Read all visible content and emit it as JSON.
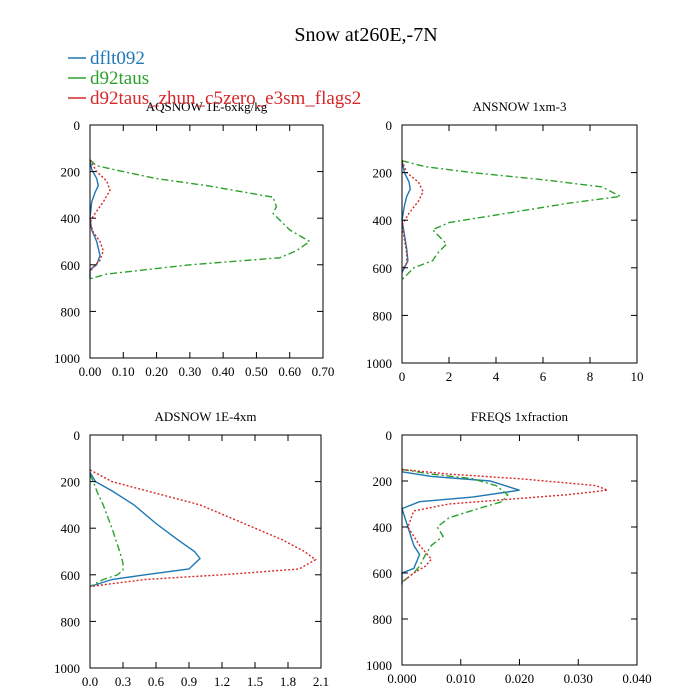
{
  "figure": {
    "title": "Snow at260E,-7N"
  },
  "legend": [
    {
      "name": "dflt092",
      "color": "#1f77b4",
      "dash": ""
    },
    {
      "name": "d92taus",
      "color": "#2ca02c",
      "dash": "7,3,2,3"
    },
    {
      "name": "d92taus_zhun_c5zero_e3sm_flags2",
      "color": "#d62728",
      "dash": "2,2"
    }
  ],
  "chart_data": [
    {
      "type": "line",
      "title": "AQSNOW  1E-6xkg/kg",
      "xlim": [
        0,
        0.7
      ],
      "ylim": [
        0,
        1000
      ],
      "xticks": [
        "0.00",
        "0.10",
        "0.20",
        "0.30",
        "0.40",
        "0.50",
        "0.60",
        "0.70"
      ],
      "xtick_values": [
        0,
        0.1,
        0.2,
        0.3,
        0.4,
        0.5,
        0.6,
        0.7
      ],
      "yticks": [
        "0",
        "200",
        "400",
        "600",
        "800",
        "1000"
      ],
      "ytick_values": [
        0,
        200,
        400,
        600,
        800,
        1000
      ],
      "series": [
        {
          "name": "dflt092",
          "points": [
            [
              0,
              150
            ],
            [
              0.005,
              190
            ],
            [
              0.02,
              230
            ],
            [
              0.025,
              260
            ],
            [
              0.015,
              290
            ],
            [
              0.005,
              330
            ],
            [
              0,
              400
            ],
            [
              0.005,
              450
            ],
            [
              0.02,
              500
            ],
            [
              0.03,
              560
            ],
            [
              0.02,
              600
            ],
            [
              0,
              620
            ],
            [
              0,
              660
            ]
          ]
        },
        {
          "name": "d92taus",
          "points": [
            [
              0,
              150
            ],
            [
              0.02,
              175
            ],
            [
              0.1,
              200
            ],
            [
              0.2,
              230
            ],
            [
              0.35,
              260
            ],
            [
              0.55,
              310
            ],
            [
              0.56,
              350
            ],
            [
              0.55,
              380
            ],
            [
              0.6,
              450
            ],
            [
              0.66,
              500
            ],
            [
              0.62,
              540
            ],
            [
              0.57,
              570
            ],
            [
              0.3,
              600
            ],
            [
              0.05,
              640
            ],
            [
              0,
              660
            ]
          ]
        },
        {
          "name": "d92taus_zhun_c5zero_e3sm_flags2",
          "points": [
            [
              0,
              150
            ],
            [
              0.02,
              200
            ],
            [
              0.05,
              240
            ],
            [
              0.06,
              280
            ],
            [
              0.04,
              330
            ],
            [
              0.01,
              390
            ],
            [
              0,
              420
            ],
            [
              0.01,
              460
            ],
            [
              0.03,
              500
            ],
            [
              0.04,
              540
            ],
            [
              0.03,
              580
            ],
            [
              0.01,
              610
            ],
            [
              0,
              630
            ]
          ]
        }
      ]
    },
    {
      "type": "line",
      "title": "ANSNOW  1xm-3",
      "xlim": [
        0,
        10
      ],
      "ylim": [
        0,
        1000
      ],
      "xticks": [
        "0",
        "2",
        "4",
        "6",
        "8",
        "10"
      ],
      "xtick_values": [
        0,
        2,
        4,
        6,
        8,
        10
      ],
      "yticks": [
        "0",
        "200",
        "400",
        "600",
        "800",
        "1000"
      ],
      "ytick_values": [
        0,
        200,
        400,
        600,
        800,
        1000
      ],
      "series": [
        {
          "name": "dflt092",
          "points": [
            [
              0,
              150
            ],
            [
              0.1,
              200
            ],
            [
              0.3,
              240
            ],
            [
              0.35,
              270
            ],
            [
              0.2,
              300
            ],
            [
              0.1,
              340
            ],
            [
              0,
              400
            ],
            [
              0.1,
              460
            ],
            [
              0.2,
              520
            ],
            [
              0.25,
              570
            ],
            [
              0.1,
              600
            ],
            [
              0,
              620
            ]
          ]
        },
        {
          "name": "d92taus",
          "points": [
            [
              0,
              150
            ],
            [
              1,
              175
            ],
            [
              3,
              200
            ],
            [
              6,
              230
            ],
            [
              8.5,
              260
            ],
            [
              9.3,
              300
            ],
            [
              7,
              330
            ],
            [
              4.5,
              370
            ],
            [
              2,
              410
            ],
            [
              1.3,
              440
            ],
            [
              1.6,
              470
            ],
            [
              1.9,
              500
            ],
            [
              1.5,
              540
            ],
            [
              1.3,
              570
            ],
            [
              0.5,
              600
            ],
            [
              0,
              650
            ]
          ]
        },
        {
          "name": "d92taus_zhun_c5zero_e3sm_flags2",
          "points": [
            [
              0,
              150
            ],
            [
              0.2,
              200
            ],
            [
              0.7,
              240
            ],
            [
              0.9,
              280
            ],
            [
              0.7,
              320
            ],
            [
              0.3,
              370
            ],
            [
              0,
              420
            ],
            [
              0.1,
              480
            ],
            [
              0.2,
              540
            ],
            [
              0.2,
              580
            ],
            [
              0,
              610
            ]
          ]
        }
      ]
    },
    {
      "type": "line",
      "title": "ADSNOW  1E-4xm",
      "xlim": [
        0,
        2.1
      ],
      "ylim": [
        0,
        1000
      ],
      "xticks": [
        "0.0",
        "0.3",
        "0.6",
        "0.9",
        "1.2",
        "1.5",
        "1.8",
        "2.1"
      ],
      "xtick_values": [
        0,
        0.3,
        0.6,
        0.9,
        1.2,
        1.5,
        1.8,
        2.1
      ],
      "yticks": [
        "0",
        "200",
        "400",
        "600",
        "800",
        "1000"
      ],
      "ytick_values": [
        0,
        200,
        400,
        600,
        800,
        1000
      ],
      "series": [
        {
          "name": "dflt092",
          "points": [
            [
              0,
              160
            ],
            [
              0.05,
              200
            ],
            [
              0.2,
              240
            ],
            [
              0.4,
              300
            ],
            [
              0.6,
              380
            ],
            [
              0.8,
              450
            ],
            [
              0.95,
              500
            ],
            [
              1.0,
              530
            ],
            [
              0.9,
              575
            ],
            [
              0.5,
              600
            ],
            [
              0.2,
              620
            ],
            [
              0,
              650
            ]
          ]
        },
        {
          "name": "d92taus",
          "points": [
            [
              0,
              170
            ],
            [
              0.03,
              200
            ],
            [
              0.07,
              250
            ],
            [
              0.12,
              300
            ],
            [
              0.2,
              400
            ],
            [
              0.27,
              500
            ],
            [
              0.3,
              550
            ],
            [
              0.3,
              580
            ],
            [
              0.25,
              600
            ],
            [
              0.12,
              620
            ],
            [
              0,
              650
            ]
          ]
        },
        {
          "name": "d92taus_zhun_c5zero_e3sm_flags2",
          "points": [
            [
              0,
              150
            ],
            [
              0.2,
              200
            ],
            [
              0.6,
              250
            ],
            [
              1.0,
              300
            ],
            [
              1.4,
              380
            ],
            [
              1.75,
              450
            ],
            [
              1.95,
              500
            ],
            [
              2.05,
              535
            ],
            [
              1.9,
              575
            ],
            [
              1.2,
              600
            ],
            [
              0.5,
              620
            ],
            [
              0,
              650
            ]
          ]
        }
      ]
    },
    {
      "type": "line",
      "title": "FREQS  1xfraction",
      "xlim": [
        0,
        0.04
      ],
      "ylim": [
        0,
        1000
      ],
      "xticks": [
        "0.000",
        "0.010",
        "0.020",
        "0.030",
        "0.040"
      ],
      "xtick_values": [
        0,
        0.01,
        0.02,
        0.03,
        0.04
      ],
      "yticks": [
        "0",
        "200",
        "400",
        "600",
        "800",
        "1000"
      ],
      "ytick_values": [
        0,
        200,
        400,
        600,
        800,
        1000
      ],
      "series": [
        {
          "name": "dflt092",
          "points": [
            [
              0,
              160
            ],
            [
              0.005,
              180
            ],
            [
              0.015,
              200
            ],
            [
              0.02,
              240
            ],
            [
              0.012,
              270
            ],
            [
              0.003,
              290
            ],
            [
              0,
              320
            ],
            [
              0.001,
              400
            ],
            [
              0.002,
              480
            ],
            [
              0.003,
              520
            ],
            [
              0.002,
              580
            ],
            [
              0,
              600
            ],
            [
              0,
              650
            ]
          ]
        },
        {
          "name": "d92taus",
          "points": [
            [
              0,
              150
            ],
            [
              0.005,
              170
            ],
            [
              0.012,
              190
            ],
            [
              0.016,
              220
            ],
            [
              0.018,
              260
            ],
            [
              0.017,
              290
            ],
            [
              0.013,
              320
            ],
            [
              0.008,
              360
            ],
            [
              0.006,
              400
            ],
            [
              0.007,
              440
            ],
            [
              0.005,
              480
            ],
            [
              0.004,
              520
            ],
            [
              0.003,
              570
            ],
            [
              0.002,
              600
            ],
            [
              0,
              640
            ]
          ]
        },
        {
          "name": "d92taus_zhun_c5zero_e3sm_flags2",
          "points": [
            [
              0,
              150
            ],
            [
              0.008,
              170
            ],
            [
              0.02,
              190
            ],
            [
              0.033,
              220
            ],
            [
              0.035,
              240
            ],
            [
              0.028,
              260
            ],
            [
              0.018,
              280
            ],
            [
              0.008,
              300
            ],
            [
              0.002,
              330
            ],
            [
              0.001,
              400
            ],
            [
              0.003,
              480
            ],
            [
              0.005,
              540
            ],
            [
              0.004,
              570
            ],
            [
              0.002,
              600
            ],
            [
              0,
              640
            ]
          ]
        }
      ]
    }
  ]
}
